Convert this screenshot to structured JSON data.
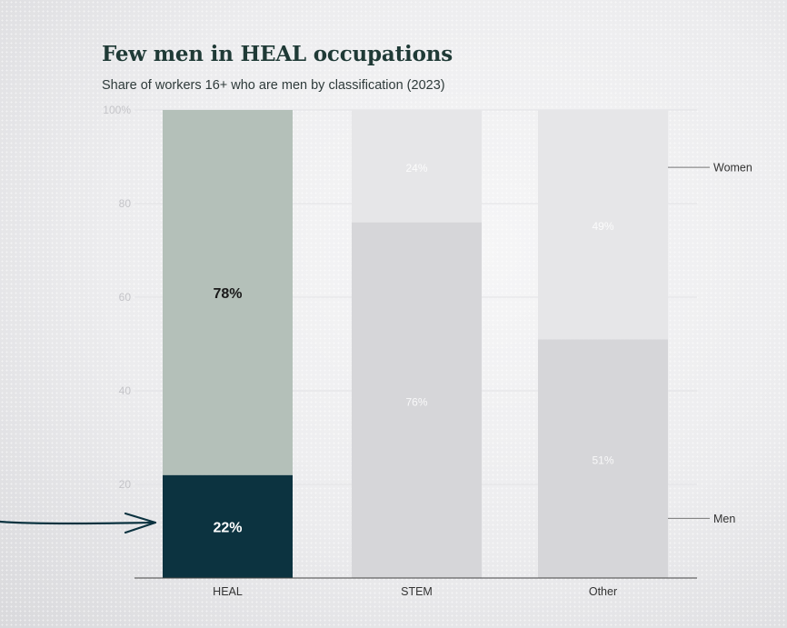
{
  "header": {
    "title": "Few men in HEAL occupations",
    "subtitle": "Share of workers 16+ who are men by classification (2023)"
  },
  "legend": {
    "women_label": "Women",
    "men_label": "Men",
    "placement": "right, inline beside Other bar"
  },
  "colors": {
    "heal_men": "#0c3340",
    "heal_women": "#b4c0b9",
    "faded_men": "#d6d6d9",
    "faded_women": "#e6e6e8",
    "arrow": "#0c3340"
  },
  "chart_data": {
    "type": "bar",
    "stacked": true,
    "categories": [
      "HEAL",
      "STEM",
      "Other"
    ],
    "series": [
      {
        "name": "Men",
        "values": [
          22,
          76,
          51
        ],
        "labels": [
          "22%",
          "76%",
          "51%"
        ]
      },
      {
        "name": "Women",
        "values": [
          78,
          24,
          49
        ],
        "labels": [
          "78%",
          "24%",
          "49%"
        ]
      }
    ],
    "ylim": [
      0,
      100
    ],
    "yticks": [
      20,
      40,
      60,
      80,
      100
    ],
    "ytick_labels": [
      "20",
      "40",
      "60",
      "80",
      "100%"
    ],
    "grid": true,
    "highlighted_category": "HEAL",
    "annotation": "arrow pointing to HEAL men segment"
  }
}
